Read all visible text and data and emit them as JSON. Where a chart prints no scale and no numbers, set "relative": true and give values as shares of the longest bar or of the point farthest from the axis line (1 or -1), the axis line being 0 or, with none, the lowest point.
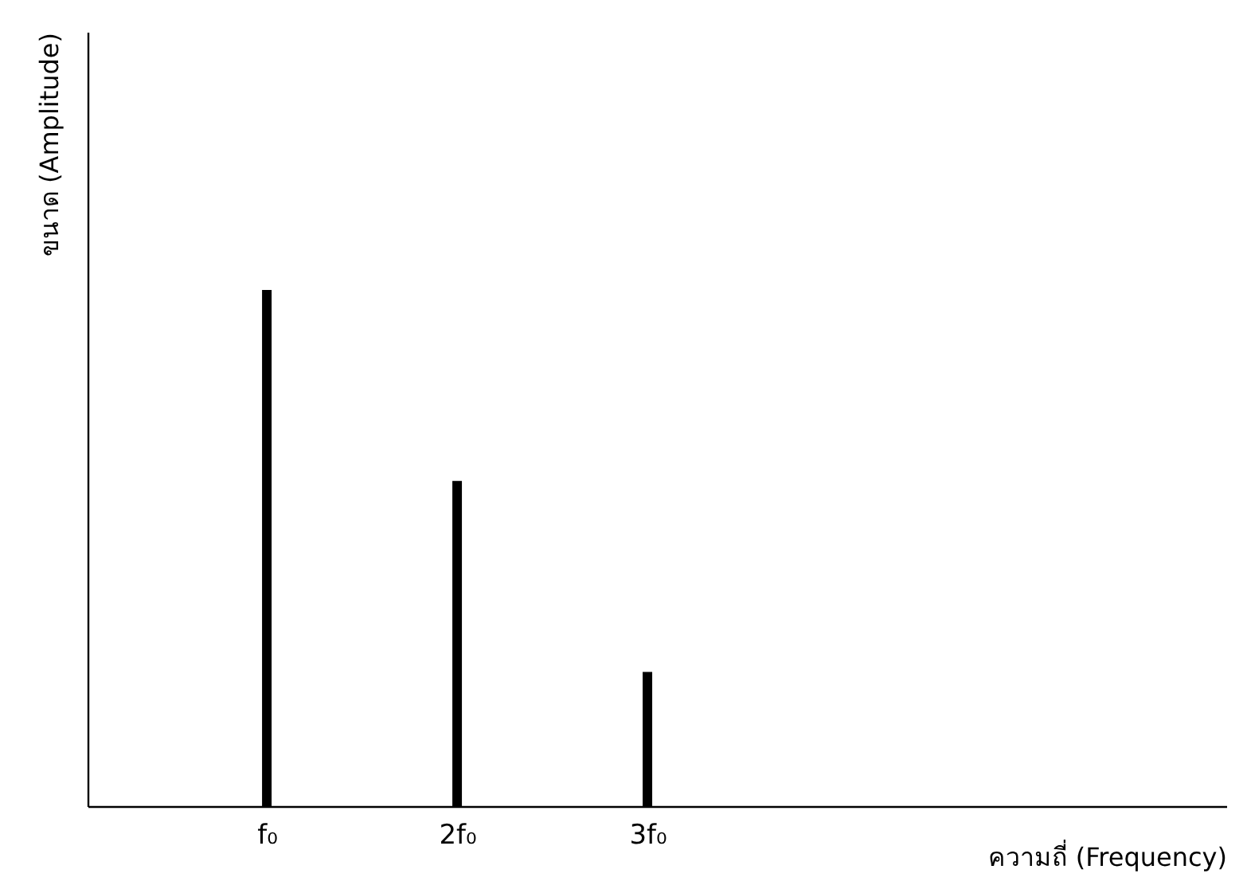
{
  "chart_data": {
    "type": "bar",
    "relative": true,
    "x": [
      1,
      2,
      3
    ],
    "values": [
      1,
      0.63,
      0.26
    ],
    "color": "#000000",
    "xlim": [
      0.1,
      6
    ],
    "xticks": [
      {
        "value": 1,
        "label": "f₀"
      },
      {
        "value": 2,
        "label": "2f₀"
      },
      {
        "value": 3,
        "label": "3f₀"
      }
    ],
    "xlabel": "ความถี่ (Frequency)",
    "ylabel": "ขนาด (Amplitude)",
    "grid": false
  }
}
